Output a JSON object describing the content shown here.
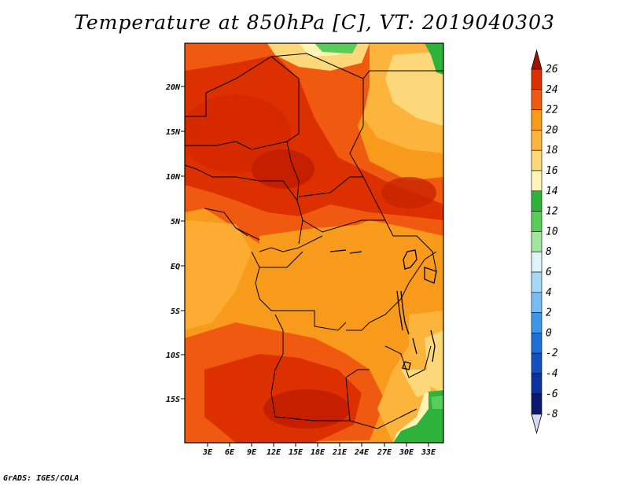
{
  "title": "Temperature at 850hPa [C], VT: 2019040303",
  "credit": "GrADS: IGES/COLA",
  "map": {
    "region": "Central Africa",
    "lat_labels": [
      "20N",
      "15N",
      "10N",
      "5N",
      "EQ",
      "5S",
      "10S",
      "15S"
    ],
    "lon_labels": [
      "3E",
      "6E",
      "9E",
      "12E",
      "15E",
      "18E",
      "21E",
      "24E",
      "27E",
      "30E",
      "33E"
    ]
  },
  "colorbar": {
    "levels": [
      "26",
      "24",
      "22",
      "20",
      "18",
      "16",
      "14",
      "12",
      "10",
      "8",
      "6",
      "4",
      "2",
      "0",
      "-2",
      "-4",
      "-6",
      "-8"
    ],
    "colors": [
      "#a01200",
      "#dc3000",
      "#f05a10",
      "#f89a1c",
      "#fdb43c",
      "#fcd87a",
      "#fdf4b8",
      "#2fb23c",
      "#5acc5a",
      "#a0e6a0",
      "#dff4f8",
      "#a8d8f8",
      "#78bcf2",
      "#4096e6",
      "#1f6ed6",
      "#1450c0",
      "#0c32a0",
      "#0a1a6e",
      "#08105a",
      "#d8d8f4"
    ]
  }
}
